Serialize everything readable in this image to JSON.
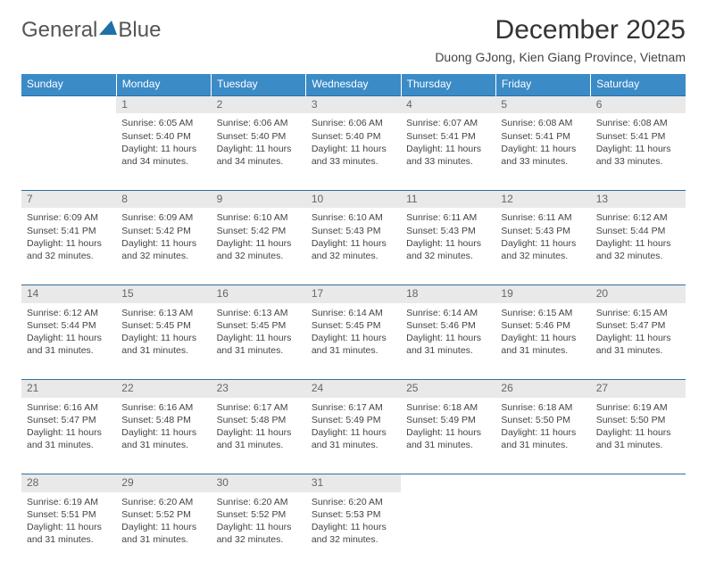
{
  "brand": {
    "part1": "General",
    "part2": "Blue"
  },
  "colors": {
    "header_bg": "#3b8bc7",
    "header_text": "#ffffff",
    "daynum_bg": "#e9e9e9",
    "daynum_text": "#666666",
    "border": "#2f6f9f",
    "logo_tri": "#1f6fa8",
    "logo_text": "#555555"
  },
  "title": "December 2025",
  "location": "Duong GJong, Kien Giang Province, Vietnam",
  "weekdays": [
    "Sunday",
    "Monday",
    "Tuesday",
    "Wednesday",
    "Thursday",
    "Friday",
    "Saturday"
  ],
  "weeks": [
    [
      null,
      {
        "n": "1",
        "sr": "Sunrise: 6:05 AM",
        "ss": "Sunset: 5:40 PM",
        "dl": "Daylight: 11 hours and 34 minutes."
      },
      {
        "n": "2",
        "sr": "Sunrise: 6:06 AM",
        "ss": "Sunset: 5:40 PM",
        "dl": "Daylight: 11 hours and 34 minutes."
      },
      {
        "n": "3",
        "sr": "Sunrise: 6:06 AM",
        "ss": "Sunset: 5:40 PM",
        "dl": "Daylight: 11 hours and 33 minutes."
      },
      {
        "n": "4",
        "sr": "Sunrise: 6:07 AM",
        "ss": "Sunset: 5:41 PM",
        "dl": "Daylight: 11 hours and 33 minutes."
      },
      {
        "n": "5",
        "sr": "Sunrise: 6:08 AM",
        "ss": "Sunset: 5:41 PM",
        "dl": "Daylight: 11 hours and 33 minutes."
      },
      {
        "n": "6",
        "sr": "Sunrise: 6:08 AM",
        "ss": "Sunset: 5:41 PM",
        "dl": "Daylight: 11 hours and 33 minutes."
      }
    ],
    [
      {
        "n": "7",
        "sr": "Sunrise: 6:09 AM",
        "ss": "Sunset: 5:41 PM",
        "dl": "Daylight: 11 hours and 32 minutes."
      },
      {
        "n": "8",
        "sr": "Sunrise: 6:09 AM",
        "ss": "Sunset: 5:42 PM",
        "dl": "Daylight: 11 hours and 32 minutes."
      },
      {
        "n": "9",
        "sr": "Sunrise: 6:10 AM",
        "ss": "Sunset: 5:42 PM",
        "dl": "Daylight: 11 hours and 32 minutes."
      },
      {
        "n": "10",
        "sr": "Sunrise: 6:10 AM",
        "ss": "Sunset: 5:43 PM",
        "dl": "Daylight: 11 hours and 32 minutes."
      },
      {
        "n": "11",
        "sr": "Sunrise: 6:11 AM",
        "ss": "Sunset: 5:43 PM",
        "dl": "Daylight: 11 hours and 32 minutes."
      },
      {
        "n": "12",
        "sr": "Sunrise: 6:11 AM",
        "ss": "Sunset: 5:43 PM",
        "dl": "Daylight: 11 hours and 32 minutes."
      },
      {
        "n": "13",
        "sr": "Sunrise: 6:12 AM",
        "ss": "Sunset: 5:44 PM",
        "dl": "Daylight: 11 hours and 32 minutes."
      }
    ],
    [
      {
        "n": "14",
        "sr": "Sunrise: 6:12 AM",
        "ss": "Sunset: 5:44 PM",
        "dl": "Daylight: 11 hours and 31 minutes."
      },
      {
        "n": "15",
        "sr": "Sunrise: 6:13 AM",
        "ss": "Sunset: 5:45 PM",
        "dl": "Daylight: 11 hours and 31 minutes."
      },
      {
        "n": "16",
        "sr": "Sunrise: 6:13 AM",
        "ss": "Sunset: 5:45 PM",
        "dl": "Daylight: 11 hours and 31 minutes."
      },
      {
        "n": "17",
        "sr": "Sunrise: 6:14 AM",
        "ss": "Sunset: 5:45 PM",
        "dl": "Daylight: 11 hours and 31 minutes."
      },
      {
        "n": "18",
        "sr": "Sunrise: 6:14 AM",
        "ss": "Sunset: 5:46 PM",
        "dl": "Daylight: 11 hours and 31 minutes."
      },
      {
        "n": "19",
        "sr": "Sunrise: 6:15 AM",
        "ss": "Sunset: 5:46 PM",
        "dl": "Daylight: 11 hours and 31 minutes."
      },
      {
        "n": "20",
        "sr": "Sunrise: 6:15 AM",
        "ss": "Sunset: 5:47 PM",
        "dl": "Daylight: 11 hours and 31 minutes."
      }
    ],
    [
      {
        "n": "21",
        "sr": "Sunrise: 6:16 AM",
        "ss": "Sunset: 5:47 PM",
        "dl": "Daylight: 11 hours and 31 minutes."
      },
      {
        "n": "22",
        "sr": "Sunrise: 6:16 AM",
        "ss": "Sunset: 5:48 PM",
        "dl": "Daylight: 11 hours and 31 minutes."
      },
      {
        "n": "23",
        "sr": "Sunrise: 6:17 AM",
        "ss": "Sunset: 5:48 PM",
        "dl": "Daylight: 11 hours and 31 minutes."
      },
      {
        "n": "24",
        "sr": "Sunrise: 6:17 AM",
        "ss": "Sunset: 5:49 PM",
        "dl": "Daylight: 11 hours and 31 minutes."
      },
      {
        "n": "25",
        "sr": "Sunrise: 6:18 AM",
        "ss": "Sunset: 5:49 PM",
        "dl": "Daylight: 11 hours and 31 minutes."
      },
      {
        "n": "26",
        "sr": "Sunrise: 6:18 AM",
        "ss": "Sunset: 5:50 PM",
        "dl": "Daylight: 11 hours and 31 minutes."
      },
      {
        "n": "27",
        "sr": "Sunrise: 6:19 AM",
        "ss": "Sunset: 5:50 PM",
        "dl": "Daylight: 11 hours and 31 minutes."
      }
    ],
    [
      {
        "n": "28",
        "sr": "Sunrise: 6:19 AM",
        "ss": "Sunset: 5:51 PM",
        "dl": "Daylight: 11 hours and 31 minutes."
      },
      {
        "n": "29",
        "sr": "Sunrise: 6:20 AM",
        "ss": "Sunset: 5:52 PM",
        "dl": "Daylight: 11 hours and 31 minutes."
      },
      {
        "n": "30",
        "sr": "Sunrise: 6:20 AM",
        "ss": "Sunset: 5:52 PM",
        "dl": "Daylight: 11 hours and 32 minutes."
      },
      {
        "n": "31",
        "sr": "Sunrise: 6:20 AM",
        "ss": "Sunset: 5:53 PM",
        "dl": "Daylight: 11 hours and 32 minutes."
      },
      null,
      null,
      null
    ]
  ]
}
